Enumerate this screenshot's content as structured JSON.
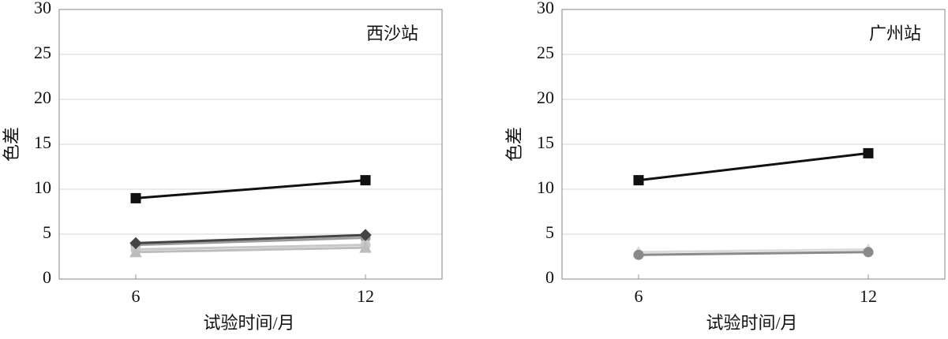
{
  "chart_data": [
    {
      "type": "line",
      "annotation": "西沙站",
      "x_label": "试验时间/月",
      "y_label": "色差",
      "x": [
        6,
        12
      ],
      "xlim": [
        4,
        14
      ],
      "xticks": [
        6,
        12
      ],
      "ylim": [
        0,
        30
      ],
      "yticks": [
        0,
        5,
        10,
        15,
        20,
        25,
        30
      ],
      "grid": true,
      "series": [
        {
          "color": "#111111",
          "marker": "square",
          "values": [
            9,
            11
          ]
        },
        {
          "color": "#9a9a9a",
          "marker": "circle",
          "values": [
            3.8,
            4.6
          ]
        },
        {
          "color": "#c8c8c8",
          "marker": "circle",
          "values": [
            3.3,
            3.8
          ]
        },
        {
          "color": "#bdbdbd",
          "marker": "triangle",
          "values": [
            3,
            3.5
          ]
        },
        {
          "color": "#444444",
          "marker": "diamond",
          "values": [
            4,
            4.9
          ]
        }
      ]
    },
    {
      "type": "line",
      "annotation": "广州站",
      "x_label": "试验时间/月",
      "y_label": "色差",
      "x": [
        6,
        12
      ],
      "xlim": [
        4,
        14
      ],
      "xticks": [
        6,
        12
      ],
      "ylim": [
        0,
        30
      ],
      "yticks": [
        0,
        5,
        10,
        15,
        20,
        25,
        30
      ],
      "grid": true,
      "series": [
        {
          "color": "#111111",
          "marker": "square",
          "values": [
            11,
            14
          ]
        },
        {
          "color": "#dcdcdc",
          "marker": "triangle",
          "values": [
            3,
            3.3
          ]
        },
        {
          "color": "#8a8a8a",
          "marker": "circle",
          "values": [
            2.7,
            3
          ]
        }
      ]
    }
  ]
}
